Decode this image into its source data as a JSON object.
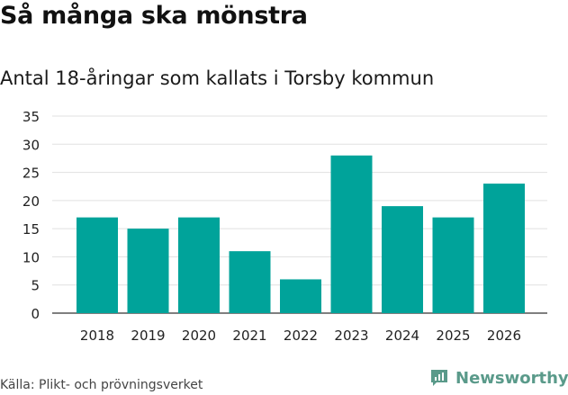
{
  "title": "Så många ska mönstra",
  "subtitle": "Antal 18-åringar som kallats i Torsby kommun",
  "source": "Källa: Plikt- och prövningsverket",
  "brand": {
    "name": "Newsworthy",
    "icon": "newsworthy-logo-icon",
    "color": "#5a9a8a"
  },
  "colors": {
    "bar": "#00a39a",
    "grid": "#e0e0e0"
  },
  "chart_data": {
    "type": "bar",
    "categories": [
      "2018",
      "2019",
      "2020",
      "2021",
      "2022",
      "2023",
      "2024",
      "2025",
      "2026"
    ],
    "values": [
      17,
      15,
      17,
      11,
      6,
      28,
      19,
      17,
      23
    ],
    "ylim": [
      0,
      35
    ],
    "yticks": [
      0,
      5,
      10,
      15,
      20,
      25,
      30,
      35
    ],
    "grid": true,
    "legend": "none"
  }
}
